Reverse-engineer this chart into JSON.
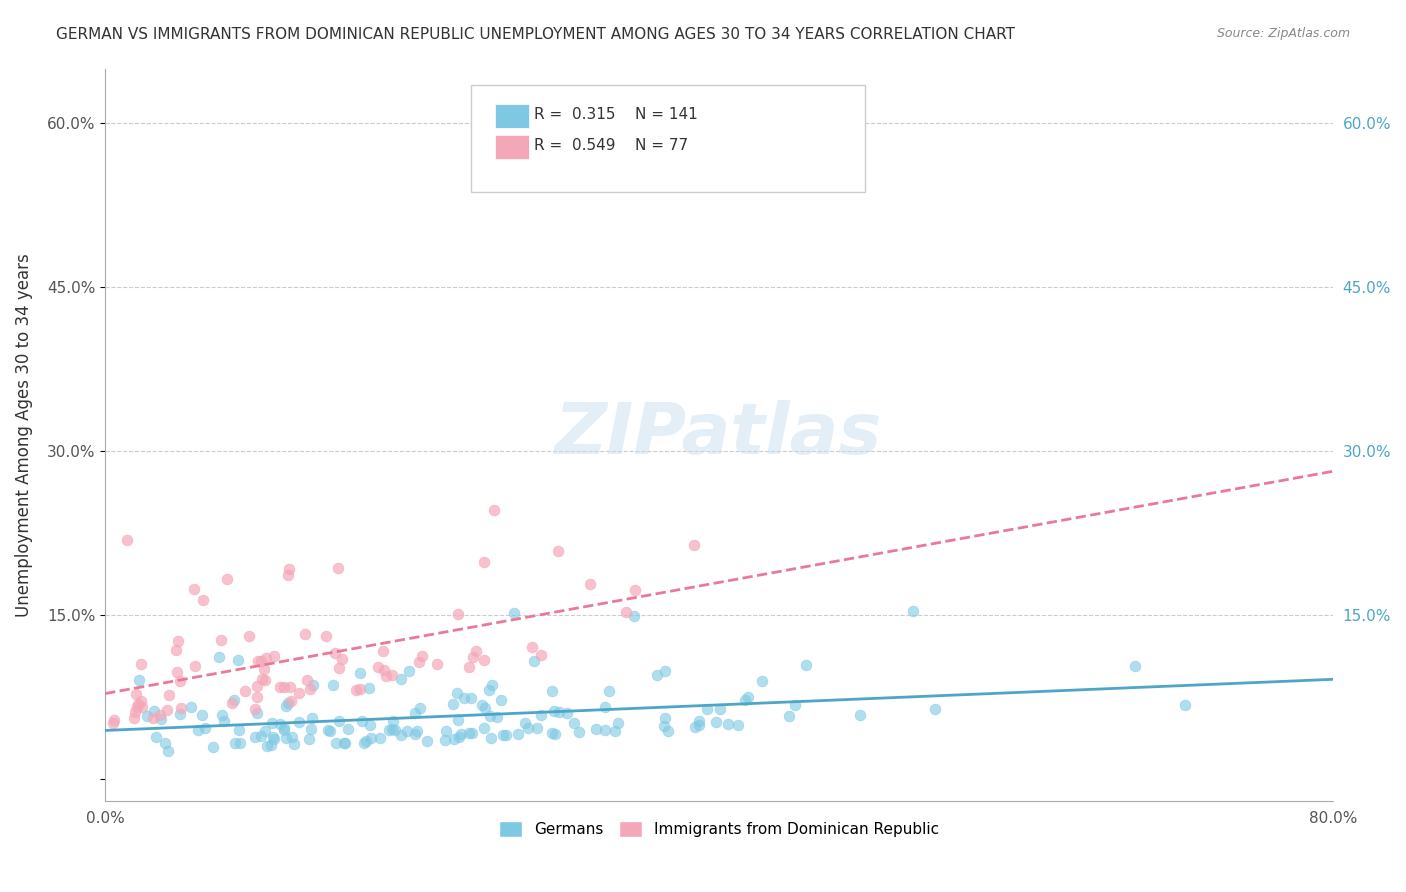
{
  "title": "GERMAN VS IMMIGRANTS FROM DOMINICAN REPUBLIC UNEMPLOYMENT AMONG AGES 30 TO 34 YEARS CORRELATION CHART",
  "source": "Source: ZipAtlas.com",
  "ylabel": "Unemployment Among Ages 30 to 34 years",
  "xlabel": "",
  "watermark": "ZIPatlas",
  "xlim": [
    0.0,
    0.8
  ],
  "ylim": [
    -0.02,
    0.65
  ],
  "xticks": [
    0.0,
    0.1,
    0.2,
    0.3,
    0.4,
    0.5,
    0.6,
    0.7,
    0.8
  ],
  "yticks": [
    0.0,
    0.15,
    0.3,
    0.45,
    0.6
  ],
  "ytick_labels": [
    "",
    "15.0%",
    "30.0%",
    "45.0%",
    "60.0%"
  ],
  "xtick_labels": [
    "0.0%",
    "",
    "",
    "",
    "",
    "",
    "",
    "",
    "80.0%"
  ],
  "german_R": 0.315,
  "german_N": 141,
  "dominican_R": 0.549,
  "dominican_N": 77,
  "german_color": "#7ec8e3",
  "dominican_color": "#f4a7b9",
  "german_line_color": "#4da6c8",
  "dominican_line_color": "#e87a98",
  "trend_line_style": "-",
  "dominican_trend_style": "--",
  "background_color": "#ffffff",
  "grid_color": "#cccccc",
  "legend_label_german": "Germans",
  "legend_label_dominican": "Immigrants from Dominican Republic",
  "german_seed": 42,
  "dominican_seed": 123
}
